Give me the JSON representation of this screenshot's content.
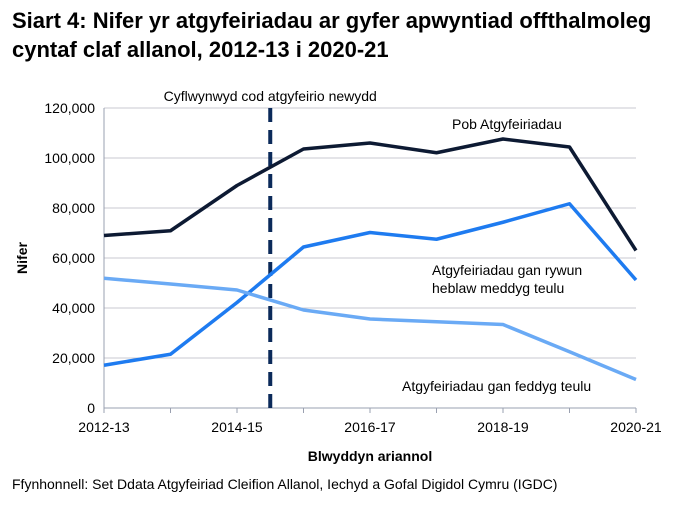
{
  "chart_data": {
    "type": "line",
    "title": "Siart 4: Nifer yr atgyfeiriadau ar gyfer apwyntiad offthalmoleg cyntaf claf allanol, 2012-13 i 2020-21",
    "xlabel": "Blwyddyn ariannol",
    "ylabel": "Nifer",
    "categories": [
      "2012-13",
      "2013-14",
      "2014-15",
      "2015-16",
      "2016-17",
      "2017-18",
      "2018-19",
      "2019-20",
      "2020-21"
    ],
    "x_tick_labels": [
      "2012-13",
      "2014-15",
      "2016-17",
      "2018-19",
      "2020-21"
    ],
    "y_tick_labels": [
      "0",
      "20,000",
      "40,000",
      "60,000",
      "80,000",
      "100,000",
      "120,000"
    ],
    "ylim": [
      0,
      120000
    ],
    "grid": true,
    "series": [
      {
        "name": "Pob Atgyfeiriadau",
        "color": "#0d1a33",
        "values": [
          69000,
          70900,
          89000,
          103600,
          106000,
          102100,
          107600,
          104400,
          63000
        ]
      },
      {
        "name": "Atgyfeiriadau gan rywun heblaw meddyg teulu",
        "color": "#1e7bf0",
        "values": [
          17100,
          21500,
          42200,
          64400,
          70200,
          67500,
          74300,
          81700,
          51200
        ]
      },
      {
        "name": "Atgyfeiriadau gan feddyg teulu",
        "color": "#6aaaf5",
        "values": [
          51900,
          49600,
          47200,
          39200,
          35600,
          34500,
          33400,
          22500,
          11400
        ]
      }
    ],
    "annotation": {
      "text": "Cyflwynwyd cod atgyfeirio newydd",
      "between": [
        "2014-15",
        "2015-16"
      ],
      "color": "#0b2a5a"
    }
  },
  "source": "Ffynhonnell: Set Ddata Atgyfeiriad Cleifion Allanol, Iechyd a Gofal Digidol Cymru (IGDC)"
}
